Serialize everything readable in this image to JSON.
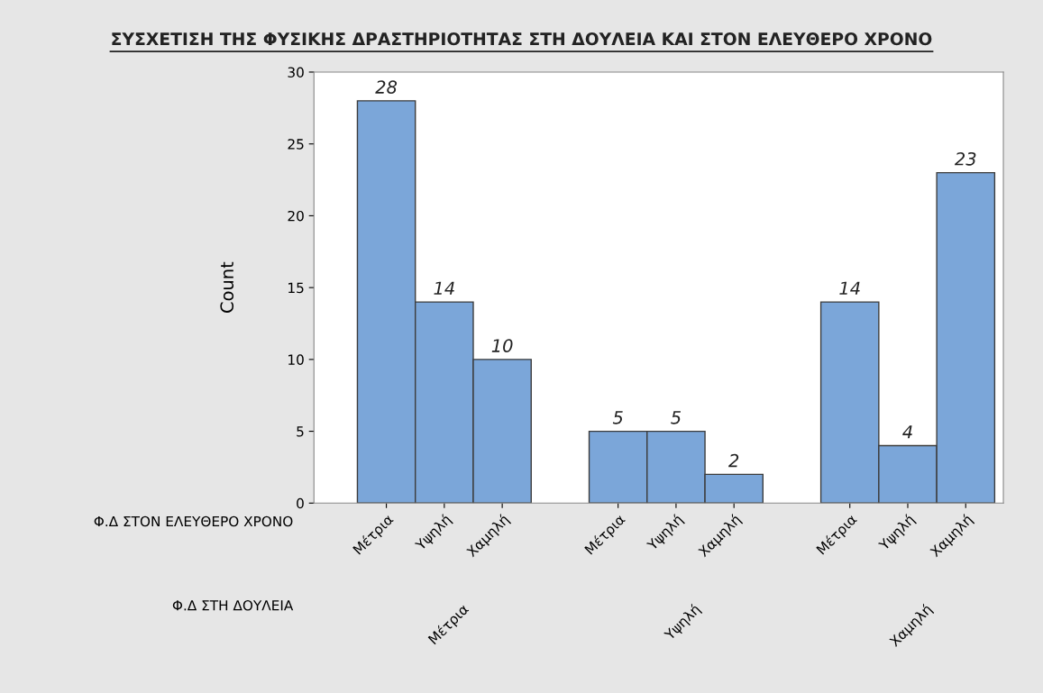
{
  "chart_data": {
    "type": "bar",
    "title": "ΣΥΣΧΕΤΙΣΗ ΤΗΣ ΦΥΣΙΚΗΣ ΔΡΑΣΤΗΡΙΟΤΗΤΑΣ ΣΤΗ ΔΟΥΛΕΙΑ ΚΑΙ ΣΤΟΝ ΕΛΕΥΘΕΡΟ ΧΡΟΝΟ",
    "ylabel": "Count",
    "categories": [
      "Μέτρια",
      "Υψηλή",
      "Χαμηλή",
      null,
      "Μέτρια",
      "Υψηλή",
      "Χαμηλή",
      null,
      "Μέτρια",
      "Υψηλή",
      "Χαμηλή"
    ],
    "values": [
      28,
      14,
      10,
      null,
      5,
      5,
      2,
      null,
      14,
      4,
      23
    ],
    "color": "#7ba6d9",
    "data_labels": true,
    "ylim": [
      0,
      30
    ],
    "yticks": [
      0,
      5,
      10,
      15,
      20,
      25,
      30
    ],
    "grid": false,
    "annotations": [
      "Φ.Δ ΣΤΟΝ ΕΛΕΥΘΕΡΟ ΧΡΟΝΟ",
      "Φ.Δ ΣΤΗ ΔΟΥΛΕΙΑ",
      "Μέτρια",
      "Υψηλή",
      "Χαμηλή"
    ]
  }
}
